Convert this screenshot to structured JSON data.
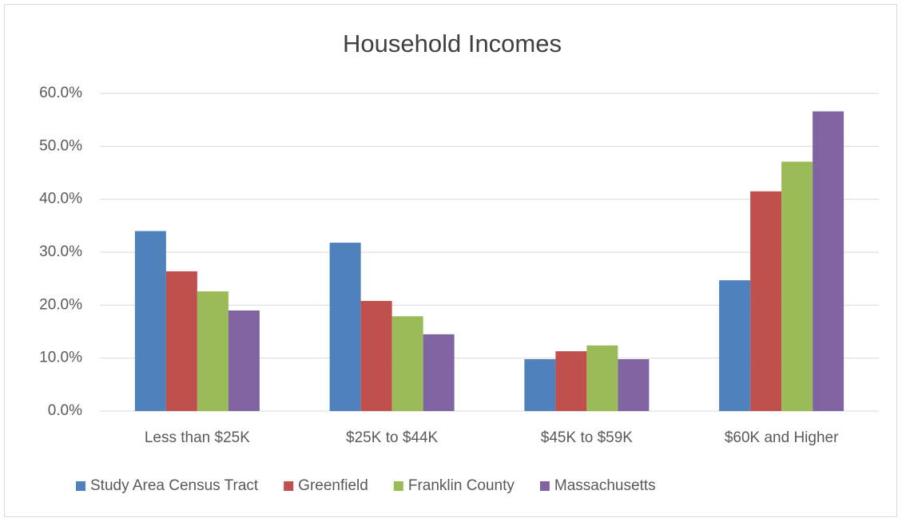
{
  "chart_data": {
    "type": "bar",
    "title": "Household Incomes",
    "categories": [
      "Less than $25K",
      "$25K to $44K",
      "$45K to $59K",
      "$60K and Higher"
    ],
    "series": [
      {
        "name": "Study Area Census Tract",
        "color": "#4f81bd",
        "values": [
          34.0,
          31.8,
          9.8,
          24.7
        ]
      },
      {
        "name": "Greenfield",
        "color": "#c0504d",
        "values": [
          26.4,
          20.8,
          11.3,
          41.5
        ]
      },
      {
        "name": "Franklin County",
        "color": "#9bbb59",
        "values": [
          22.6,
          17.9,
          12.4,
          47.1
        ]
      },
      {
        "name": "Massachusetts",
        "color": "#8064a2",
        "values": [
          19.0,
          14.5,
          9.8,
          56.6
        ]
      }
    ],
    "ylim": [
      0,
      60
    ],
    "yticks": [
      {
        "value": 0,
        "label": "0.0%"
      },
      {
        "value": 10,
        "label": "10.0%"
      },
      {
        "value": 20,
        "label": "20.0%"
      },
      {
        "value": 30,
        "label": "30.0%"
      },
      {
        "value": 40,
        "label": "40.0%"
      },
      {
        "value": 50,
        "label": "50.0%"
      },
      {
        "value": 60,
        "label": "60.0%"
      }
    ],
    "grid": true,
    "legend": "bottom"
  }
}
